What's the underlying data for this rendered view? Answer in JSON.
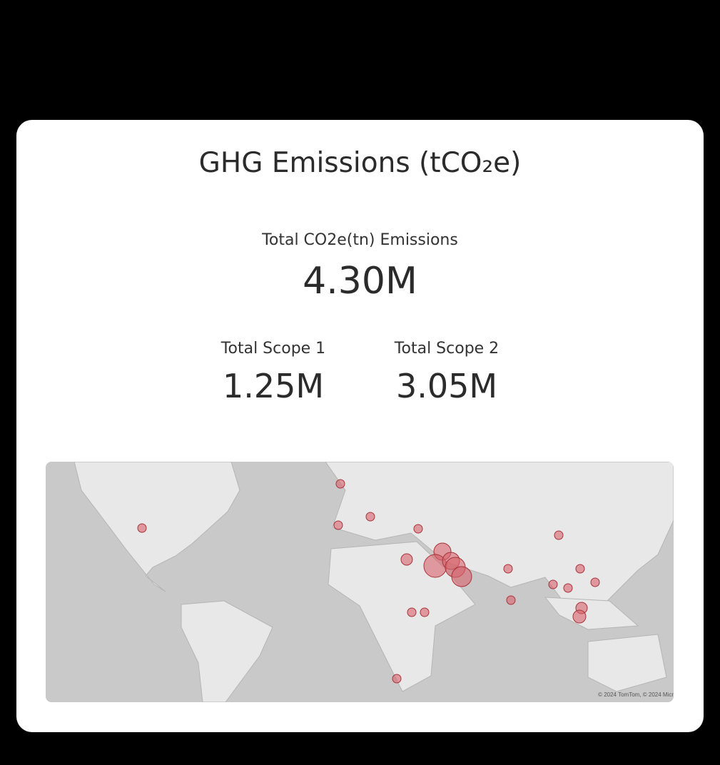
{
  "title": "GHG Emissions (tCO₂e)",
  "total": {
    "label": "Total CO2e(tn) Emissions",
    "value": "4.30M"
  },
  "scope1": {
    "label": "Total Scope 1",
    "value": "1.25M"
  },
  "scope2": {
    "label": "Total Scope 2",
    "value": "3.05M"
  },
  "map": {
    "attribution": "© 2024 TomTom, © 2024 Micr",
    "colors": {
      "ocean": "#c9c9c9",
      "land": "#e8e8e8",
      "bubble": "#d9646c",
      "bubble_stroke": "#a8323a"
    }
  }
}
